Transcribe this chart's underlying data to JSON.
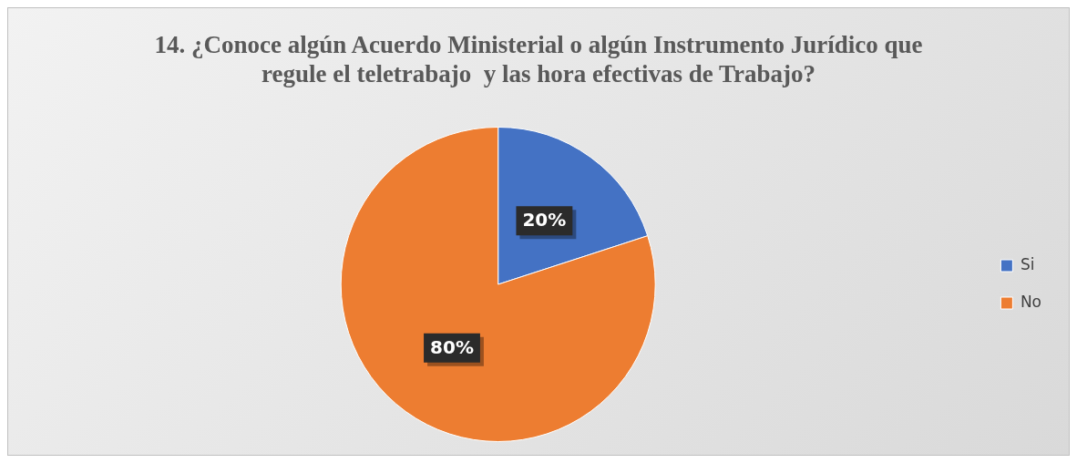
{
  "chart_data": {
    "type": "pie",
    "title": "14. ¿Conoce algún Acuerdo Ministerial o algún Instrumento Jurídico que regule el teletrabajo  y las hora efectivas de Trabajo?",
    "categories": [
      "Si",
      "No"
    ],
    "values": [
      20,
      80
    ],
    "colors": [
      "#4472c4",
      "#ed7d31"
    ],
    "value_labels": [
      "20%",
      "80%"
    ],
    "legend": "right"
  }
}
